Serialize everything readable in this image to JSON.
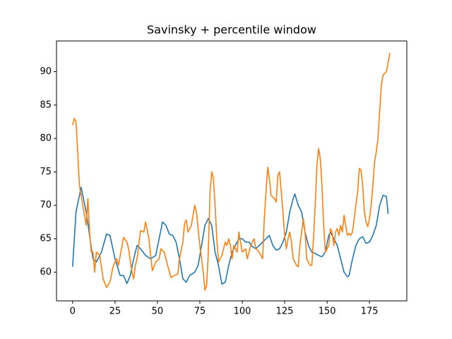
{
  "chart_data": {
    "type": "line",
    "title": "Savinsky + percentile window",
    "xlim": [
      -9.5,
      197
    ],
    "ylim": [
      55.7,
      94.6
    ],
    "xticks": [
      0,
      25,
      50,
      75,
      100,
      125,
      150,
      175
    ],
    "yticks": [
      60,
      65,
      70,
      75,
      80,
      85,
      90
    ],
    "grid": false,
    "series": [
      {
        "color": "#1f77b4",
        "x": [
          0,
          2,
          5,
          8,
          12,
          14,
          17,
          20,
          22,
          25,
          28,
          30,
          32,
          34,
          36,
          38,
          40,
          43,
          46,
          49,
          51,
          53,
          55,
          57,
          59,
          61,
          63,
          65,
          67,
          69,
          72,
          74,
          76,
          78,
          80,
          82,
          84,
          86,
          88,
          90,
          92,
          94,
          96,
          98,
          100,
          102,
          104,
          106,
          108,
          110,
          112,
          114,
          116,
          118,
          120,
          122,
          124,
          126,
          128,
          130,
          131,
          133,
          135,
          137,
          139,
          141,
          143,
          145,
          147,
          149,
          151,
          152,
          154,
          156,
          158,
          160,
          162,
          163,
          165,
          167,
          169,
          171,
          173,
          175,
          177,
          179,
          181,
          183,
          185,
          186
        ],
        "values": [
          60.8,
          69,
          72.7,
          69,
          62,
          61.5,
          63,
          65.7,
          65.5,
          62,
          59.5,
          59.5,
          58.3,
          59.5,
          62,
          64,
          63.5,
          62.5,
          62,
          62.5,
          65,
          67.5,
          67,
          65.7,
          65.5,
          64.5,
          62,
          59,
          58.5,
          59.5,
          60,
          61,
          64,
          67,
          68,
          67,
          63,
          61,
          58.2,
          58.5,
          61,
          63,
          64,
          65,
          65,
          64.5,
          64.5,
          63.8,
          63.5,
          64,
          64.5,
          65,
          65.5,
          64,
          63.3,
          63.5,
          64.5,
          66,
          69,
          71,
          71.7,
          70,
          69,
          66,
          64,
          63,
          62.8,
          62.5,
          62.3,
          63,
          65.5,
          66,
          65,
          64,
          62,
          60,
          59.3,
          59.5,
          62,
          64,
          65,
          65.3,
          64.3,
          64.5,
          65.5,
          67,
          70,
          71.5,
          71.3,
          68.7
        ]
      },
      {
        "color": "#ff7f0e",
        "x": [
          0,
          1,
          2,
          3,
          4,
          6,
          8,
          9,
          10,
          11,
          12,
          13,
          14,
          16,
          18,
          20,
          22,
          24,
          26,
          27,
          30,
          32,
          33,
          35,
          36,
          37,
          38,
          40,
          42,
          43,
          45,
          46,
          47,
          49,
          51,
          52,
          54,
          56,
          58,
          60,
          62,
          63,
          65,
          66,
          67,
          68,
          70,
          72,
          73,
          75,
          77,
          78,
          79,
          80,
          81,
          82,
          83,
          84,
          85,
          86,
          88,
          90,
          91,
          92,
          93,
          94,
          95,
          96,
          97,
          98,
          100,
          102,
          103,
          105,
          107,
          108,
          110,
          112,
          113,
          114,
          115,
          116,
          117,
          119,
          120,
          121,
          122,
          123,
          124,
          125,
          126,
          127,
          128,
          129,
          130,
          132,
          133,
          134,
          135,
          136,
          137,
          138,
          140,
          141,
          142,
          143,
          144,
          145,
          146,
          147,
          148,
          149,
          151,
          152,
          153,
          154,
          155,
          156,
          157,
          158,
          159,
          160,
          161,
          162,
          163,
          164,
          165,
          167,
          168,
          169,
          170,
          171,
          172,
          173,
          174,
          175,
          176,
          177,
          178,
          179,
          180,
          181,
          182,
          183,
          185,
          187
        ],
        "values": [
          82,
          83,
          82.5,
          78,
          73,
          70,
          67,
          71,
          66,
          63,
          63,
          60,
          63,
          62.5,
          59,
          57.7,
          58.5,
          61,
          62,
          61,
          65.2,
          64.5,
          63.5,
          60,
          59,
          61,
          62,
          66.2,
          66,
          67.5,
          65,
          62.5,
          60.2,
          61.5,
          62,
          63.5,
          63,
          61,
          59.2,
          59.5,
          59.7,
          62,
          64.5,
          67.3,
          67.8,
          66,
          67,
          70,
          69,
          64,
          60,
          57.3,
          58,
          63,
          72,
          75,
          74,
          70,
          65,
          61.5,
          62.5,
          64.5,
          64,
          65,
          64,
          62,
          64,
          63.5,
          63,
          66,
          63,
          63.5,
          62,
          64,
          65,
          63.5,
          63,
          62,
          68,
          72,
          75.7,
          74,
          71.5,
          71,
          70.5,
          74.5,
          75,
          72,
          69,
          65.5,
          63.5,
          65,
          66,
          64.5,
          62,
          61,
          60.8,
          64,
          66,
          68,
          66,
          62,
          61,
          61,
          65,
          70,
          76,
          78.5,
          77,
          73,
          67,
          63,
          64,
          66.5,
          66,
          64,
          66,
          66.5,
          65.5,
          67,
          66,
          68.5,
          67,
          65.5,
          65.8,
          65.5,
          66,
          70,
          72,
          75.5,
          75.3,
          73,
          69,
          67.5,
          66.8,
          68,
          70,
          73,
          76.5,
          78,
          80,
          84,
          88,
          89.5,
          90,
          92.8
        ]
      }
    ]
  }
}
